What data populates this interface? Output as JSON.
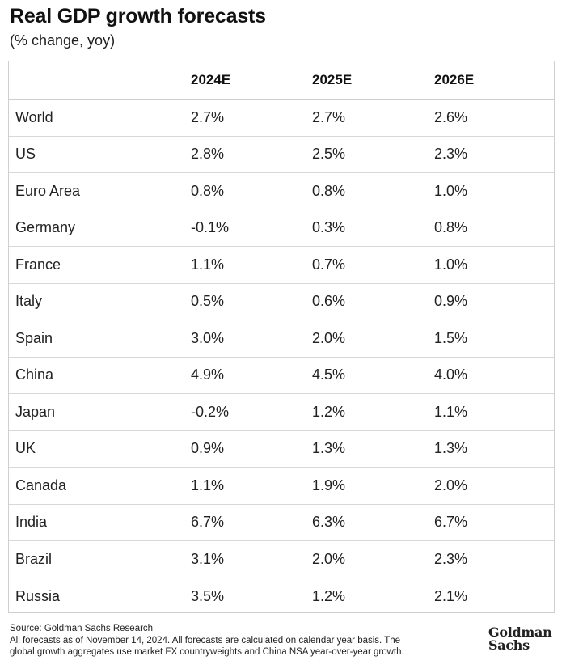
{
  "title": "Real GDP growth forecasts",
  "subtitle": "(% change, yoy)",
  "table": {
    "columns": [
      "",
      "2024E",
      "2025E",
      "2026E"
    ],
    "rows": [
      {
        "country": "World",
        "y2024": "2.7%",
        "y2025": "2.7%",
        "y2026": "2.6%"
      },
      {
        "country": "US",
        "y2024": "2.8%",
        "y2025": "2.5%",
        "y2026": "2.3%"
      },
      {
        "country": "Euro Area",
        "y2024": "0.8%",
        "y2025": "0.8%",
        "y2026": "1.0%"
      },
      {
        "country": "Germany",
        "y2024": "-0.1%",
        "y2025": "0.3%",
        "y2026": "0.8%"
      },
      {
        "country": "France",
        "y2024": "1.1%",
        "y2025": "0.7%",
        "y2026": "1.0%"
      },
      {
        "country": "Italy",
        "y2024": "0.5%",
        "y2025": "0.6%",
        "y2026": "0.9%"
      },
      {
        "country": "Spain",
        "y2024": "3.0%",
        "y2025": "2.0%",
        "y2026": "1.5%"
      },
      {
        "country": "China",
        "y2024": "4.9%",
        "y2025": "4.5%",
        "y2026": "4.0%"
      },
      {
        "country": "Japan",
        "y2024": "-0.2%",
        "y2025": "1.2%",
        "y2026": "1.1%"
      },
      {
        "country": "UK",
        "y2024": "0.9%",
        "y2025": "1.3%",
        "y2026": "1.3%"
      },
      {
        "country": "Canada",
        "y2024": "1.1%",
        "y2025": "1.9%",
        "y2026": "2.0%"
      },
      {
        "country": "India",
        "y2024": "6.7%",
        "y2025": "6.3%",
        "y2026": "6.7%"
      },
      {
        "country": "Brazil",
        "y2024": "3.1%",
        "y2025": "2.0%",
        "y2026": "2.3%"
      },
      {
        "country": "Russia",
        "y2024": "3.5%",
        "y2025": "1.2%",
        "y2026": "2.1%"
      }
    ]
  },
  "footer": {
    "source": "Source: Goldman Sachs Research",
    "note_line1": "All forecasts as of November 14, 2024. All forecasts are calculated on calendar year basis. The",
    "note_line2": "global growth aggregates use market FX countryweights and China NSA year-over-year growth."
  },
  "logo": {
    "line1": "Goldman",
    "line2": "Sachs"
  },
  "chart_data": {
    "type": "table",
    "title": "Real GDP growth forecasts",
    "subtitle": "(% change, yoy)",
    "columns": [
      "2024E",
      "2025E",
      "2026E"
    ],
    "categories": [
      "World",
      "US",
      "Euro Area",
      "Germany",
      "France",
      "Italy",
      "Spain",
      "China",
      "Japan",
      "UK",
      "Canada",
      "India",
      "Brazil",
      "Russia"
    ],
    "series": [
      {
        "name": "2024E",
        "values": [
          2.7,
          2.8,
          0.8,
          -0.1,
          1.1,
          0.5,
          3.0,
          4.9,
          -0.2,
          0.9,
          1.1,
          6.7,
          3.1,
          3.5
        ]
      },
      {
        "name": "2025E",
        "values": [
          2.7,
          2.5,
          0.8,
          0.3,
          0.7,
          0.6,
          2.0,
          4.5,
          1.2,
          1.3,
          1.9,
          6.3,
          2.0,
          1.2
        ]
      },
      {
        "name": "2026E",
        "values": [
          2.6,
          2.3,
          1.0,
          0.8,
          1.0,
          0.9,
          1.5,
          4.0,
          1.1,
          1.3,
          2.0,
          6.7,
          2.3,
          2.1
        ]
      }
    ]
  }
}
